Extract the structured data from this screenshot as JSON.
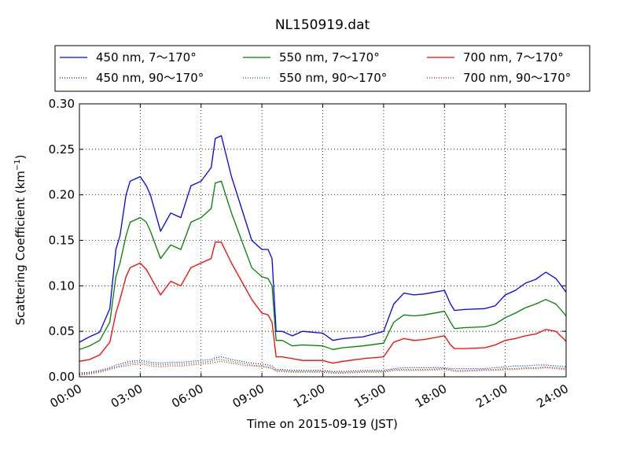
{
  "chart_data": {
    "type": "line",
    "title": "NL150919.dat",
    "xlabel": "Time on 2015-09-19 (JST)",
    "ylabel": "Scattering Coefficient (km",
    "ylabel_sup": "−1",
    "ylabel_end": ")",
    "xlim": [
      0,
      24
    ],
    "ylim": [
      0,
      0.3
    ],
    "grid": true,
    "legend_position": "top",
    "x_ticks": [
      0,
      3,
      6,
      9,
      12,
      15,
      18,
      21,
      24
    ],
    "x_tick_labels": [
      "00:00",
      "03:00",
      "06:00",
      "09:00",
      "12:00",
      "15:00",
      "18:00",
      "21:00",
      "24:00"
    ],
    "y_ticks": [
      0,
      0.05,
      0.1,
      0.15,
      0.2,
      0.25,
      0.3
    ],
    "y_tick_labels": [
      "0.00",
      "0.05",
      "0.10",
      "0.15",
      "0.20",
      "0.25",
      "0.30"
    ],
    "x": [
      0,
      0.5,
      1,
      1.5,
      1.8,
      2,
      2.3,
      2.5,
      3,
      3.3,
      3.5,
      4,
      4.5,
      5,
      5.5,
      6,
      6.5,
      6.7,
      7,
      7.5,
      8,
      8.5,
      9,
      9.3,
      9.5,
      9.7,
      10,
      10.5,
      11,
      12,
      12.5,
      13,
      14,
      15,
      15.5,
      16,
      16.5,
      17,
      18,
      18.3,
      18.5,
      19,
      20,
      20.5,
      21,
      21.5,
      22,
      22.5,
      23,
      23.5,
      24
    ],
    "series": [
      {
        "name": "450 nm, 7～170°",
        "color": "#0000ff",
        "style": "solid",
        "values": [
          0.038,
          0.044,
          0.049,
          0.075,
          0.14,
          0.155,
          0.2,
          0.215,
          0.22,
          0.21,
          0.2,
          0.16,
          0.18,
          0.175,
          0.21,
          0.215,
          0.23,
          0.262,
          0.265,
          0.22,
          0.185,
          0.15,
          0.14,
          0.14,
          0.13,
          0.05,
          0.05,
          0.045,
          0.05,
          0.048,
          0.04,
          0.042,
          0.044,
          0.05,
          0.08,
          0.092,
          0.09,
          0.091,
          0.095,
          0.08,
          0.073,
          0.074,
          0.075,
          0.078,
          0.09,
          0.095,
          0.103,
          0.107,
          0.115,
          0.108,
          0.093
        ]
      },
      {
        "name": "450 nm, 90～170°",
        "color": "#0000ff",
        "style": "dotted",
        "values": [
          0.004,
          0.005,
          0.007,
          0.01,
          0.013,
          0.014,
          0.016,
          0.017,
          0.018,
          0.017,
          0.016,
          0.015,
          0.016,
          0.016,
          0.017,
          0.018,
          0.019,
          0.021,
          0.022,
          0.019,
          0.017,
          0.015,
          0.014,
          0.013,
          0.012,
          0.008,
          0.008,
          0.007,
          0.007,
          0.007,
          0.006,
          0.006,
          0.007,
          0.007,
          0.009,
          0.01,
          0.01,
          0.01,
          0.01,
          0.009,
          0.009,
          0.009,
          0.009,
          0.01,
          0.011,
          0.012,
          0.012,
          0.013,
          0.013,
          0.012,
          0.011
        ]
      },
      {
        "name": "550 nm, 7～170°",
        "color": "#008000",
        "style": "solid",
        "values": [
          0.03,
          0.034,
          0.04,
          0.06,
          0.11,
          0.125,
          0.155,
          0.17,
          0.175,
          0.17,
          0.16,
          0.13,
          0.145,
          0.14,
          0.17,
          0.175,
          0.185,
          0.213,
          0.215,
          0.18,
          0.15,
          0.12,
          0.11,
          0.108,
          0.1,
          0.04,
          0.04,
          0.034,
          0.035,
          0.034,
          0.03,
          0.032,
          0.034,
          0.037,
          0.06,
          0.068,
          0.067,
          0.068,
          0.072,
          0.06,
          0.053,
          0.054,
          0.055,
          0.058,
          0.065,
          0.07,
          0.076,
          0.08,
          0.085,
          0.08,
          0.067
        ]
      },
      {
        "name": "550 nm, 90～170°",
        "color": "#008000",
        "style": "dotted",
        "values": [
          0.003,
          0.004,
          0.006,
          0.009,
          0.011,
          0.012,
          0.014,
          0.015,
          0.016,
          0.015,
          0.014,
          0.013,
          0.014,
          0.014,
          0.015,
          0.016,
          0.017,
          0.019,
          0.019,
          0.017,
          0.015,
          0.013,
          0.012,
          0.011,
          0.01,
          0.007,
          0.007,
          0.006,
          0.006,
          0.006,
          0.005,
          0.005,
          0.006,
          0.006,
          0.008,
          0.008,
          0.008,
          0.008,
          0.009,
          0.008,
          0.007,
          0.007,
          0.008,
          0.008,
          0.009,
          0.009,
          0.01,
          0.01,
          0.011,
          0.01,
          0.009
        ]
      },
      {
        "name": "700 nm, 7～170°",
        "color": "#ff0000",
        "style": "solid",
        "values": [
          0.017,
          0.019,
          0.024,
          0.038,
          0.07,
          0.085,
          0.11,
          0.12,
          0.125,
          0.118,
          0.11,
          0.09,
          0.105,
          0.1,
          0.12,
          0.125,
          0.13,
          0.148,
          0.148,
          0.125,
          0.105,
          0.085,
          0.07,
          0.068,
          0.06,
          0.022,
          0.022,
          0.02,
          0.018,
          0.018,
          0.015,
          0.017,
          0.02,
          0.022,
          0.038,
          0.042,
          0.04,
          0.041,
          0.045,
          0.035,
          0.031,
          0.031,
          0.032,
          0.035,
          0.04,
          0.042,
          0.045,
          0.047,
          0.052,
          0.05,
          0.039
        ]
      },
      {
        "name": "700 nm, 90～170°",
        "color": "#ff0000",
        "style": "dotted",
        "values": [
          0.002,
          0.003,
          0.005,
          0.008,
          0.01,
          0.011,
          0.012,
          0.013,
          0.014,
          0.013,
          0.012,
          0.011,
          0.012,
          0.012,
          0.013,
          0.014,
          0.015,
          0.016,
          0.017,
          0.015,
          0.013,
          0.012,
          0.011,
          0.01,
          0.009,
          0.006,
          0.006,
          0.005,
          0.005,
          0.005,
          0.004,
          0.004,
          0.005,
          0.005,
          0.007,
          0.007,
          0.007,
          0.007,
          0.008,
          0.007,
          0.006,
          0.006,
          0.007,
          0.007,
          0.008,
          0.008,
          0.009,
          0.009,
          0.01,
          0.009,
          0.008
        ]
      }
    ]
  }
}
